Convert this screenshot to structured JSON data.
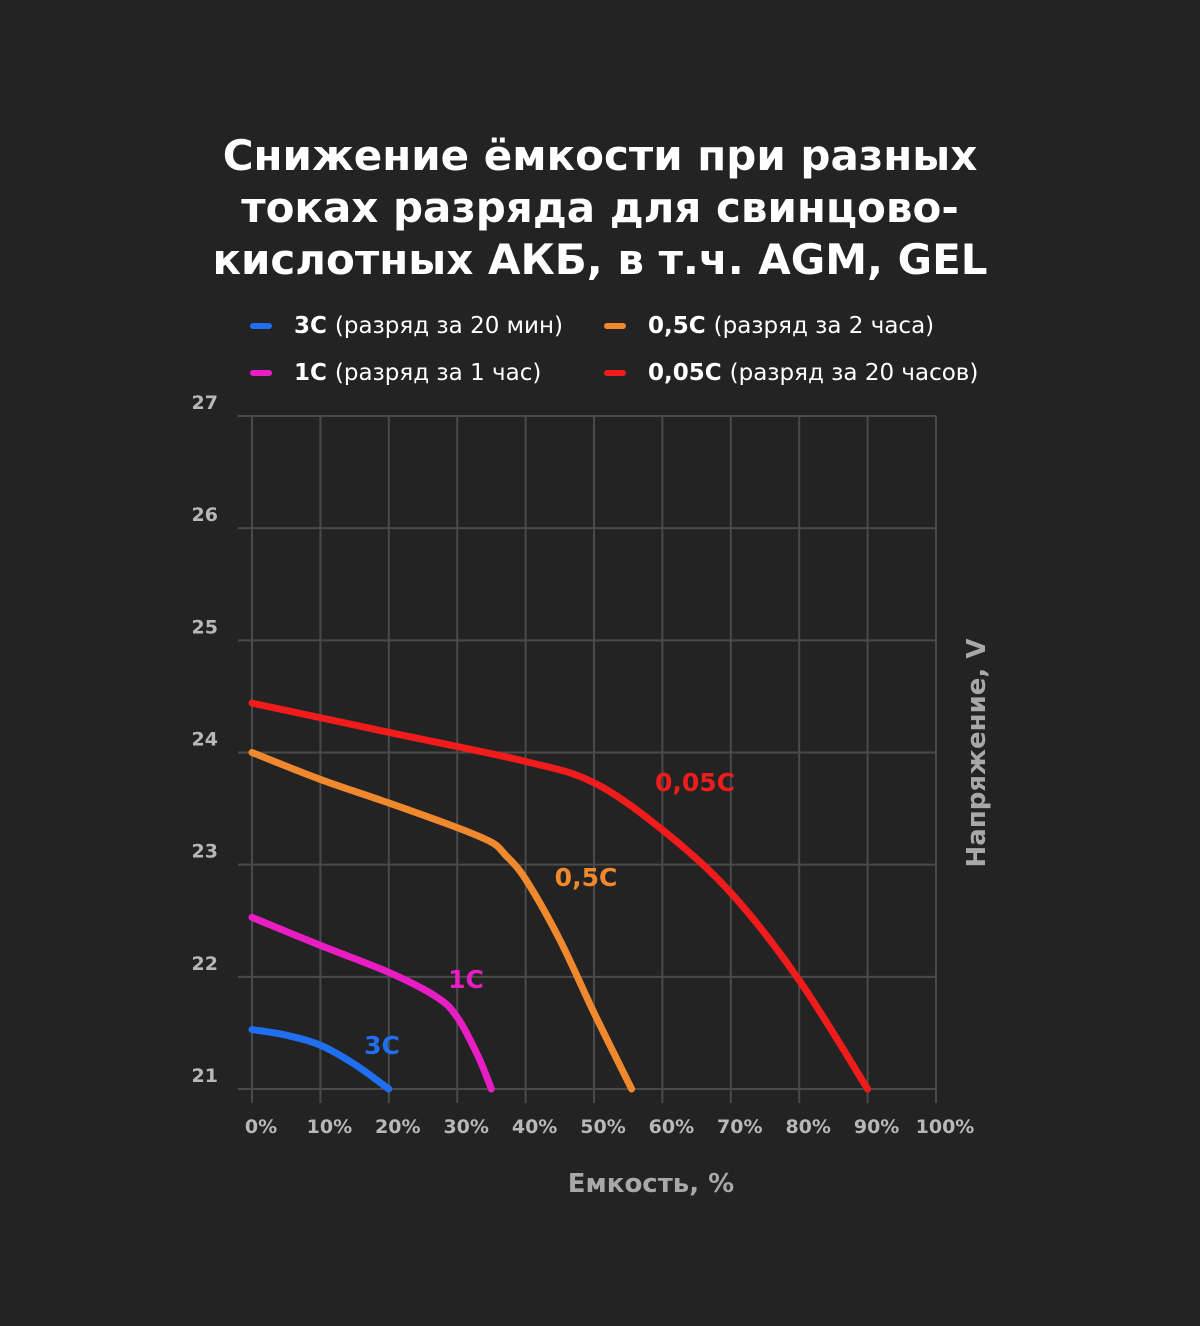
{
  "chart_data": {
    "type": "line",
    "title_lines": [
      "Снижение ёмкости при разных",
      "токах разряда для свинцово-",
      "кислотных АКБ, в т.ч. AGM, GEL"
    ],
    "xlabel": "Емкость, %",
    "ylabel": "Напряжение, V",
    "xlim": [
      0,
      100
    ],
    "ylim": [
      21,
      27
    ],
    "x_ticks": [
      "0%",
      "10%",
      "20%",
      "30%",
      "40%",
      "50%",
      "60%",
      "70%",
      "80%",
      "90%",
      "100%"
    ],
    "y_ticks": [
      "21",
      "22",
      "23",
      "24",
      "25",
      "26",
      "27"
    ],
    "grid": true,
    "legend_position": "top",
    "series": [
      {
        "name": "3C",
        "desc": "(разряд за 20 мин)",
        "label": "3C",
        "color": "#1f6ff0",
        "x": [
          0,
          5,
          10,
          15,
          20
        ],
        "y": [
          21.53,
          21.48,
          21.39,
          21.22,
          21.0
        ]
      },
      {
        "name": "1C",
        "desc": "(разряд за 1 час)",
        "label": "1C",
        "color": "#e81ec4",
        "x": [
          0,
          10,
          20,
          27,
          30,
          33,
          35
        ],
        "y": [
          22.53,
          22.28,
          22.04,
          21.82,
          21.64,
          21.3,
          21.0
        ]
      },
      {
        "name": "0,5C",
        "desc": "(разряд за 2 часа)",
        "label": "0,5C",
        "color": "#f0882e",
        "x": [
          0,
          10,
          20,
          30,
          35,
          37,
          40,
          45,
          50,
          55.5
        ],
        "y": [
          24.0,
          23.76,
          23.55,
          23.33,
          23.2,
          23.09,
          22.87,
          22.33,
          21.68,
          21.0
        ]
      },
      {
        "name": "0,05C",
        "desc": "(разряд за 20 часов)",
        "label": "0,05C",
        "color": "#f01c1c",
        "x": [
          0,
          20,
          40,
          50,
          60,
          70,
          80,
          90
        ],
        "y": [
          24.44,
          24.18,
          23.92,
          23.73,
          23.31,
          22.75,
          21.97,
          21.0
        ]
      }
    ]
  }
}
